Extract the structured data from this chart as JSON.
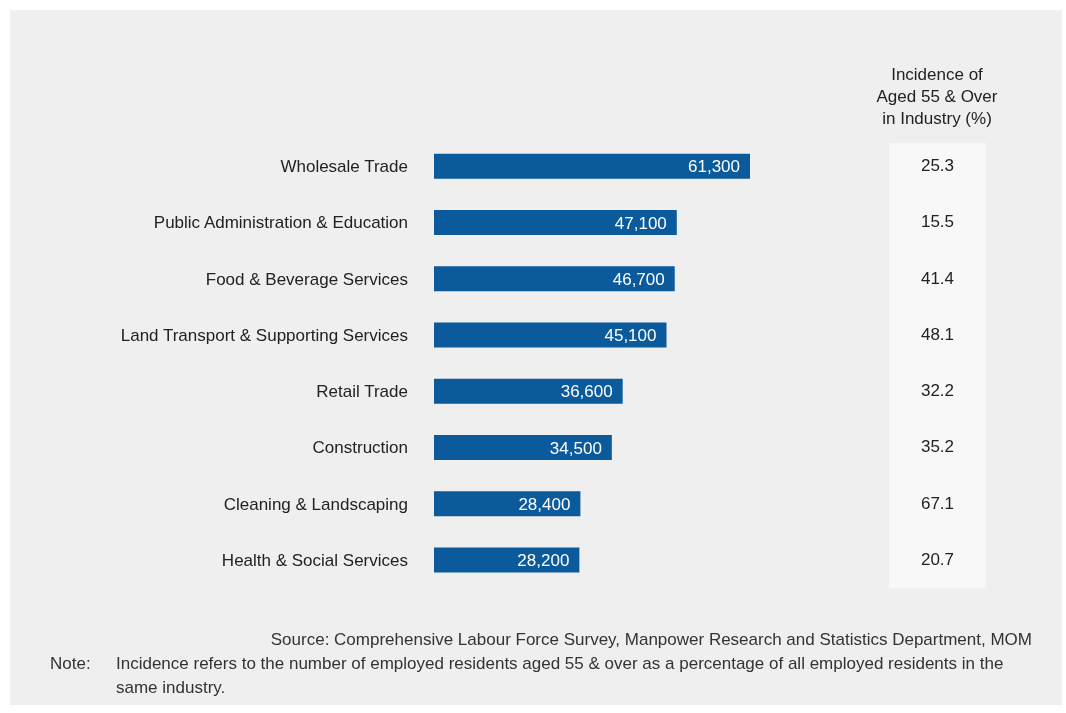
{
  "chart_data": {
    "type": "bar",
    "orientation": "horizontal",
    "categories": [
      "Wholesale Trade",
      "Public Administration & Education",
      "Food & Beverage Services",
      "Land Transport & Supporting Services",
      "Retail Trade",
      "Construction",
      "Cleaning & Landscaping",
      "Health & Social Services"
    ],
    "values": [
      61300,
      47100,
      46700,
      45100,
      36600,
      34500,
      28400,
      28200
    ],
    "value_labels": [
      "61,300",
      "47,100",
      "46,700",
      "45,100",
      "36,600",
      "34,500",
      "28,400",
      "28,200"
    ],
    "color": "#0b5a9c",
    "annotations": [
      "Incidence of Aged 55 & Over in Industry (%)",
      "25.3",
      "15.5",
      "41.4",
      "48.1",
      "32.2",
      "35.2",
      "67.1",
      "20.7",
      "Source: Comprehensive Labour Force Survey, Manpower Research and Statistics Department, MOM",
      "Note:\tIncidence refers to the number of employed residents aged 55 & over as a percentage of all employed residents in the same industry."
    ]
  }
}
